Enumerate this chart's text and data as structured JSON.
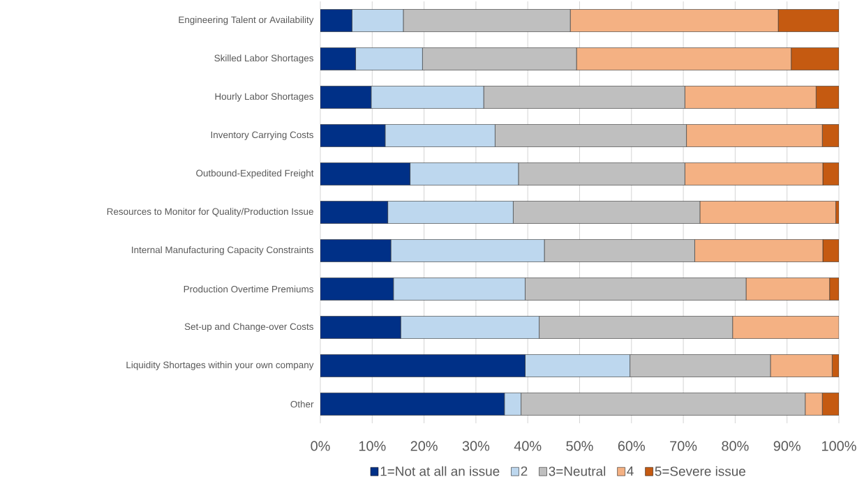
{
  "chart_data": {
    "type": "bar",
    "orientation": "horizontal",
    "stacked": true,
    "categories": [
      "Engineering Talent or Availability",
      "Skilled Labor Shortages",
      "Hourly Labor Shortages",
      "Inventory Carrying Costs",
      "Outbound-Expedited Freight",
      "Resources to Monitor for Quality/Production Issue",
      "Internal Manufacturing Capacity Constraints",
      "Production Overtime Premiums",
      "Set-up and Change-over Costs",
      "Liquidity Shortages within your own company",
      "Other"
    ],
    "series": [
      {
        "name": "1=Not at all an issue",
        "color": "#003087",
        "values": [
          6.1,
          6.8,
          9.8,
          12.5,
          17.3,
          13.0,
          13.6,
          14.1,
          15.5,
          39.5,
          35.5
        ]
      },
      {
        "name": "2",
        "color": "#bdd7ee",
        "values": [
          9.9,
          12.9,
          21.7,
          21.2,
          20.9,
          24.2,
          29.6,
          25.4,
          26.7,
          20.2,
          3.2
        ]
      },
      {
        "name": "3=Neutral",
        "color": "#bfbfbf",
        "values": [
          32.2,
          29.7,
          38.8,
          36.9,
          32.1,
          36.0,
          29.0,
          42.6,
          37.3,
          27.1,
          54.8
        ]
      },
      {
        "name": "4",
        "color": "#f4b183",
        "values": [
          40.1,
          41.4,
          25.3,
          26.2,
          26.6,
          26.2,
          24.7,
          16.1,
          20.5,
          11.9,
          3.3
        ]
      },
      {
        "name": "5=Severe issue",
        "color": "#c55a11",
        "values": [
          11.7,
          9.2,
          4.4,
          3.2,
          3.1,
          0.6,
          3.1,
          1.8,
          0,
          1.3,
          3.2
        ]
      }
    ],
    "xlim": [
      0,
      100
    ],
    "xticks": [
      {
        "value": 0,
        "label": "0%"
      },
      {
        "value": 10,
        "label": "10%"
      },
      {
        "value": 20,
        "label": "20%"
      },
      {
        "value": 30,
        "label": "30%"
      },
      {
        "value": 40,
        "label": "40%"
      },
      {
        "value": 50,
        "label": "50%"
      },
      {
        "value": 60,
        "label": "60%"
      },
      {
        "value": 70,
        "label": "70%"
      },
      {
        "value": 80,
        "label": "80%"
      },
      {
        "value": 90,
        "label": "90%"
      },
      {
        "value": 100,
        "label": "100%"
      }
    ],
    "grid": "x",
    "legend": "bottom"
  }
}
